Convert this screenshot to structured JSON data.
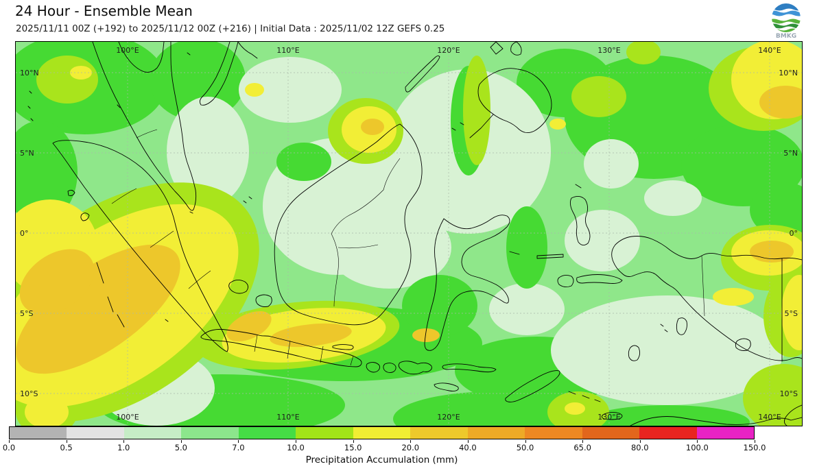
{
  "header": {
    "title": "24 Hour - Ensemble Mean",
    "subtitle": "2025/11/11 00Z (+192) to 2025/11/12 00Z (+216) | Initial Data : 2025/11/02 12Z GEFS 0.25",
    "logo_text": "BMKG"
  },
  "map": {
    "lon_labels": [
      "100°E",
      "110°E",
      "120°E",
      "130°E",
      "140°E"
    ],
    "lat_labels": [
      "10°N",
      "5°N",
      "0°",
      "5°S",
      "10°S"
    ],
    "palette": {
      "base": "#8fe78a",
      "mint": "#d8f2d4",
      "pale": "#c9eec4",
      "bright": "#46da33",
      "chartreuse": "#a9e41c",
      "yellow": "#f2ee36",
      "gold": "#edc72b"
    }
  },
  "colorbar": {
    "ticks": [
      "0.0",
      "0.5",
      "1.0",
      "5.0",
      "7.0",
      "10.0",
      "15.0",
      "20.0",
      "40.0",
      "50.0",
      "65.0",
      "80.0",
      "100.0",
      "150.0"
    ],
    "colors": [
      "#b3b3b3",
      "#e3e3e3",
      "#c6edc6",
      "#8ce68c",
      "#45dd45",
      "#a2e418",
      "#f0ee33",
      "#eec92b",
      "#eeaa26",
      "#ee8822",
      "#e2661c",
      "#e82420",
      "#e822c4"
    ],
    "label": "Precipitation Accumulation (mm)"
  }
}
